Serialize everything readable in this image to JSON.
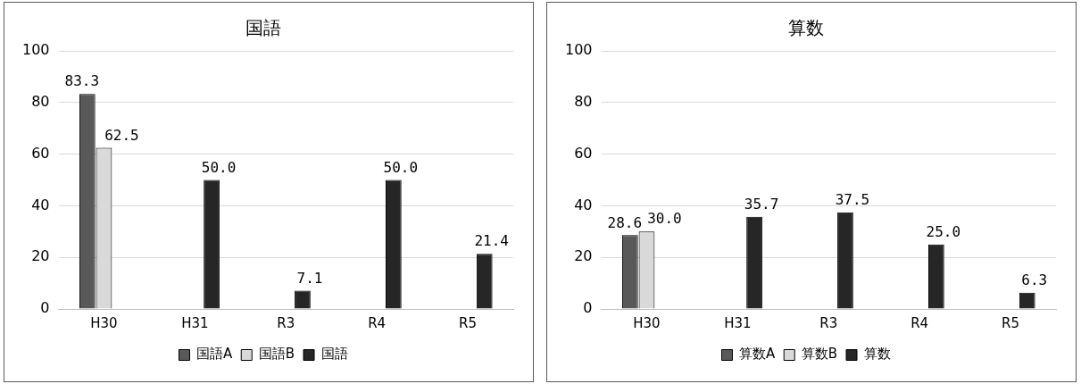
{
  "chart_data": [
    {
      "type": "bar",
      "title": "国語",
      "categories": [
        "H30",
        "H31",
        "R3",
        "R4",
        "R5"
      ],
      "ylim": [
        0,
        100
      ],
      "yticks": [
        0,
        20,
        40,
        60,
        80,
        100
      ],
      "grid": "y",
      "legend": "bottom",
      "series": [
        {
          "name": "国語A",
          "color": "#595959",
          "values": [
            83.3,
            null,
            null,
            null,
            null
          ],
          "value_labels": [
            "83.3",
            null,
            null,
            null,
            null
          ]
        },
        {
          "name": "国語B",
          "color": "#d9d9d9",
          "values": [
            62.5,
            null,
            null,
            null,
            null
          ],
          "value_labels": [
            "62.5",
            null,
            null,
            null,
            null
          ]
        },
        {
          "name": "国語",
          "color": "#262626",
          "values": [
            null,
            50.0,
            7.1,
            50.0,
            21.4
          ],
          "value_labels": [
            null,
            "50.0",
            "7.1",
            "50.0",
            "21.4"
          ]
        }
      ]
    },
    {
      "type": "bar",
      "title": "算数",
      "categories": [
        "H30",
        "H31",
        "R3",
        "R4",
        "R5"
      ],
      "ylim": [
        0,
        100
      ],
      "yticks": [
        0,
        20,
        40,
        60,
        80,
        100
      ],
      "grid": "y",
      "legend": "bottom",
      "series": [
        {
          "name": "算数A",
          "color": "#595959",
          "values": [
            28.6,
            null,
            null,
            null,
            null
          ],
          "value_labels": [
            "28.6",
            null,
            null,
            null,
            null
          ]
        },
        {
          "name": "算数B",
          "color": "#d9d9d9",
          "values": [
            30.0,
            null,
            null,
            null,
            null
          ],
          "value_labels": [
            "30.0",
            null,
            null,
            null,
            null
          ]
        },
        {
          "name": "算数",
          "color": "#262626",
          "values": [
            null,
            35.7,
            37.5,
            25.0,
            6.3
          ],
          "value_labels": [
            null,
            "35.7",
            "37.5",
            "25.0",
            "6.3"
          ]
        }
      ]
    }
  ]
}
